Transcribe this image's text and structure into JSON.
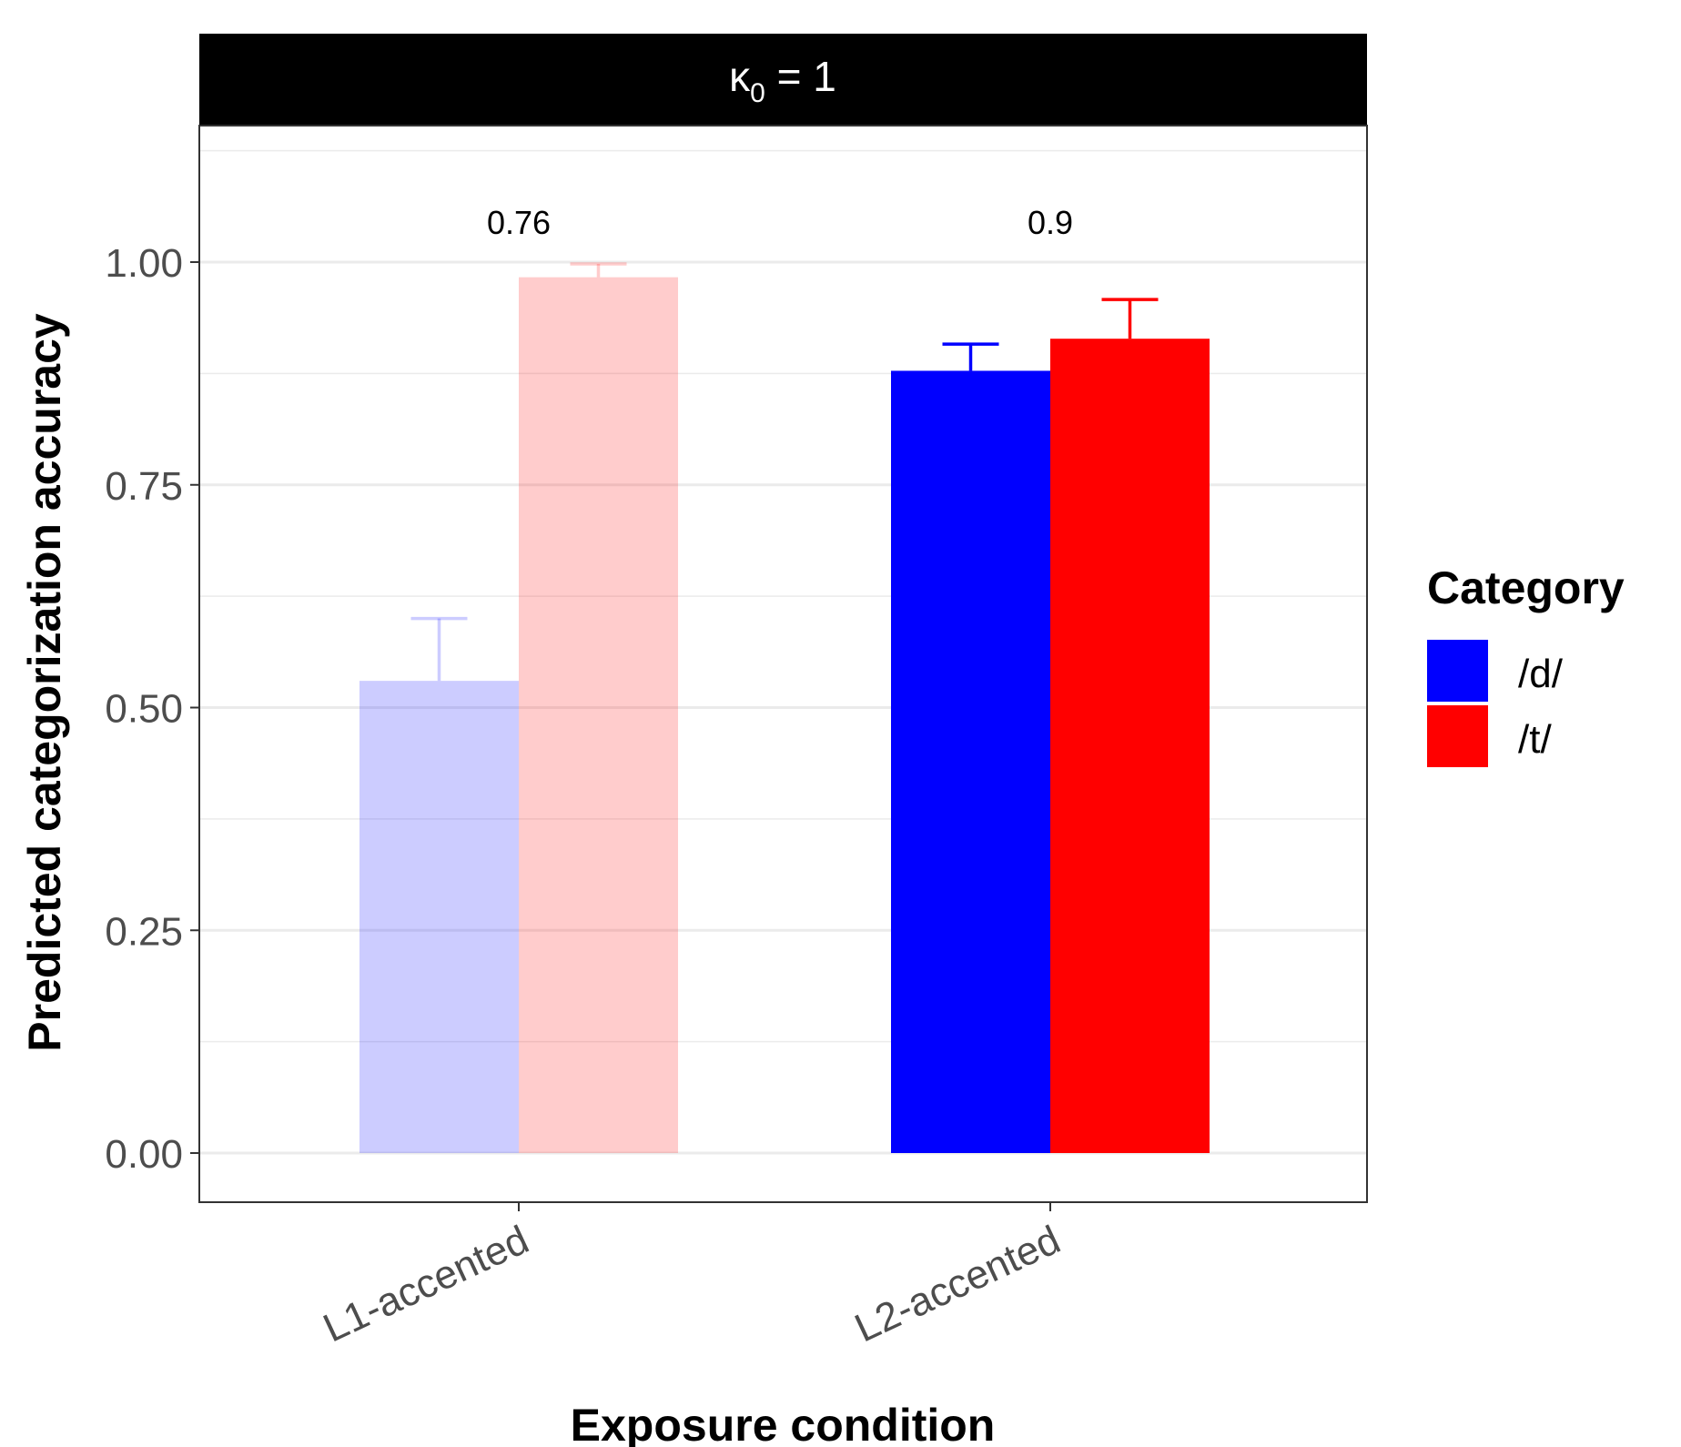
{
  "chart_data": {
    "type": "bar",
    "panel_label": {
      "symbol": "κ",
      "subscript": "0",
      "rest": " = 1"
    },
    "xlabel": "Exposure condition",
    "ylabel": "Predicted categorization accuracy",
    "ylim": [
      -0.055,
      1.13
    ],
    "yticks": [
      0,
      0.25,
      0.5,
      0.75,
      1.0
    ],
    "ytick_labels": [
      "0.00",
      "0.25",
      "0.50",
      "0.75",
      "1.00"
    ],
    "grid": true,
    "categories": [
      "L1-accented",
      "L2-accented"
    ],
    "series": [
      {
        "name": "/d/",
        "color": "#0000ff",
        "values": [
          0.53,
          0.878
        ],
        "error_upper": [
          0.6,
          0.908
        ],
        "opacity": [
          0.2,
          1.0
        ]
      },
      {
        "name": "/t/",
        "color": "#ff0000",
        "values": [
          0.983,
          0.914
        ],
        "error_upper": [
          0.998,
          0.958
        ],
        "opacity": [
          0.2,
          1.0
        ]
      }
    ],
    "bar_labels": [
      "0.76",
      "0.9"
    ],
    "bar_label_y": 1.045,
    "legend": {
      "title": "Category",
      "position": "right"
    }
  }
}
